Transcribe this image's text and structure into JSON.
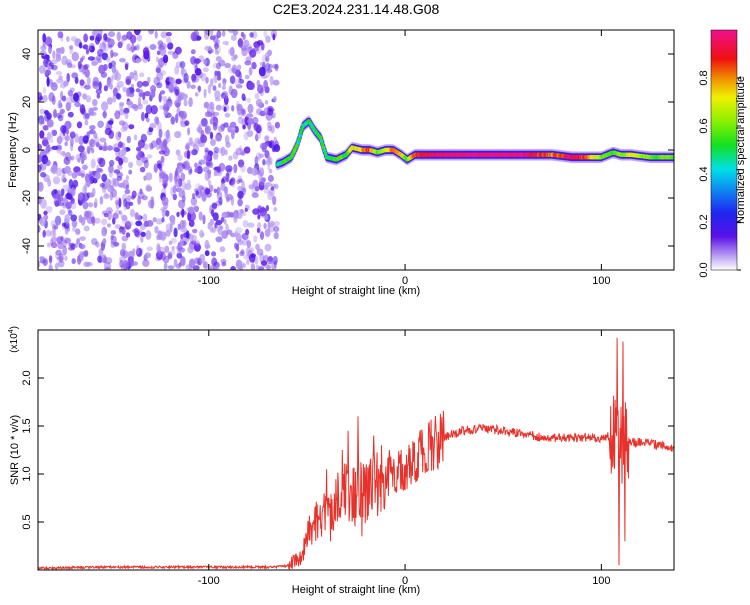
{
  "title": "C2E3.2024.231.14.48.G08",
  "colors": {
    "snr_line": "#e8312a",
    "noise_color": "#7f2ff0",
    "axis": "#000000"
  },
  "chart_data": [
    {
      "type": "heatmap",
      "xlabel": "Height of straight line (km)",
      "ylabel": "Frequency (Hz)",
      "xlim": [
        -187,
        137
      ],
      "ylim": [
        -50,
        50
      ],
      "xticks": [
        -100,
        0,
        100
      ],
      "xtick_labels": [
        "-100",
        "0",
        "100"
      ],
      "yticks": [
        -40,
        -20,
        0,
        20,
        40
      ],
      "ytick_labels": [
        "-40",
        "-20",
        "0",
        "20",
        "40"
      ],
      "colorbar": {
        "label": "Normalized spectral amplitude",
        "range": [
          0,
          1
        ],
        "ticks": [
          0.0,
          0.2,
          0.4,
          0.6,
          0.8
        ],
        "tick_labels": [
          "0.0",
          "0.2",
          "0.4",
          "0.6",
          "0.8"
        ],
        "colormap": "rainbow (purple-blue-cyan-green-yellow-red-magenta)",
        "placement": "right"
      },
      "noise_region_x": [
        -187,
        -65
      ],
      "ridge": [
        {
          "x": -65,
          "y": -6,
          "amp": 0.45
        },
        {
          "x": -62,
          "y": -5,
          "amp": 0.5
        },
        {
          "x": -58,
          "y": -3,
          "amp": 0.55
        },
        {
          "x": -55,
          "y": 2,
          "amp": 0.5
        },
        {
          "x": -52,
          "y": 10,
          "amp": 0.45
        },
        {
          "x": -49,
          "y": 12,
          "amp": 0.5
        },
        {
          "x": -46,
          "y": 8,
          "amp": 0.5
        },
        {
          "x": -43,
          "y": 5,
          "amp": 0.5
        },
        {
          "x": -40,
          "y": -3,
          "amp": 0.5
        },
        {
          "x": -35,
          "y": -4,
          "amp": 0.55
        },
        {
          "x": -30,
          "y": -2,
          "amp": 0.55
        },
        {
          "x": -27,
          "y": 1,
          "amp": 0.7
        },
        {
          "x": -22,
          "y": 0,
          "amp": 0.75
        },
        {
          "x": -18,
          "y": 0,
          "amp": 0.85
        },
        {
          "x": -14,
          "y": -1,
          "amp": 0.6
        },
        {
          "x": -10,
          "y": 0,
          "amp": 0.7
        },
        {
          "x": -6,
          "y": 0,
          "amp": 0.8
        },
        {
          "x": -2,
          "y": -2,
          "amp": 0.75
        },
        {
          "x": 1,
          "y": -4,
          "amp": 0.5
        },
        {
          "x": 5,
          "y": -2,
          "amp": 0.85
        },
        {
          "x": 15,
          "y": -2,
          "amp": 0.95
        },
        {
          "x": 30,
          "y": -2,
          "amp": 1.0
        },
        {
          "x": 45,
          "y": -2,
          "amp": 1.0
        },
        {
          "x": 60,
          "y": -2,
          "amp": 0.98
        },
        {
          "x": 75,
          "y": -2,
          "amp": 0.8
        },
        {
          "x": 85,
          "y": -3,
          "amp": 0.95
        },
        {
          "x": 92,
          "y": -3,
          "amp": 0.85
        },
        {
          "x": 100,
          "y": -3,
          "amp": 0.6
        },
        {
          "x": 106,
          "y": -1,
          "amp": 0.55
        },
        {
          "x": 110,
          "y": -2,
          "amp": 0.6
        },
        {
          "x": 115,
          "y": -2,
          "amp": 0.7
        },
        {
          "x": 125,
          "y": -3,
          "amp": 0.6
        },
        {
          "x": 137,
          "y": -3,
          "amp": 0.55
        }
      ]
    },
    {
      "type": "line",
      "xlabel": "Height of straight line (km)",
      "ylabel": "SNR (10 * v/v)",
      "y_multiplier": "(x10",
      "y_multiplier_exp": "4",
      "y_multiplier_close": ")",
      "xlim": [
        -187,
        137
      ],
      "ylim": [
        0,
        2.5
      ],
      "xticks": [
        -100,
        0,
        100
      ],
      "xtick_labels": [
        "-100",
        "0",
        "100"
      ],
      "yticks": [
        0.5,
        1.0,
        1.5,
        2.0
      ],
      "ytick_labels": [
        "0.5",
        "1.0",
        "1.5",
        "2.0"
      ],
      "series": [
        {
          "color": "#e8312a",
          "x": [
            -187,
            -150,
            -100,
            -70,
            -60,
            -55,
            -52,
            -48,
            -45,
            -40,
            -35,
            -30,
            -28,
            -25,
            -22,
            -20,
            -15,
            -10,
            -5,
            0,
            5,
            10,
            15,
            20,
            25,
            30,
            35,
            40,
            50,
            60,
            70,
            80,
            90,
            100,
            105,
            108,
            110,
            112,
            115,
            120,
            130,
            137
          ],
          "y": [
            0.02,
            0.03,
            0.03,
            0.03,
            0.04,
            0.1,
            0.2,
            0.45,
            0.55,
            0.6,
            0.7,
            0.8,
            0.85,
            0.75,
            0.9,
            0.8,
            0.9,
            0.95,
            1.0,
            1.05,
            1.15,
            1.25,
            1.32,
            1.38,
            1.42,
            1.45,
            1.46,
            1.47,
            1.45,
            1.42,
            1.38,
            1.38,
            1.38,
            1.37,
            1.4,
            1.5,
            1.3,
            1.35,
            1.32,
            1.33,
            1.3,
            1.27
          ]
        }
      ],
      "spikes": [
        {
          "x": -40,
          "y": 1.05
        },
        {
          "x": -38,
          "y": 0.3
        },
        {
          "x": -32,
          "y": 1.25
        },
        {
          "x": -29,
          "y": 1.45
        },
        {
          "x": -24,
          "y": 1.6
        },
        {
          "x": -22,
          "y": 0.35
        },
        {
          "x": -16,
          "y": 1.4
        },
        {
          "x": -12,
          "y": 1.3
        },
        {
          "x": -8,
          "y": 1.25
        },
        {
          "x": 108,
          "y": 2.42
        },
        {
          "x": 109,
          "y": 0.05
        },
        {
          "x": 111,
          "y": 2.38
        },
        {
          "x": 112,
          "y": 0.3
        }
      ]
    }
  ]
}
